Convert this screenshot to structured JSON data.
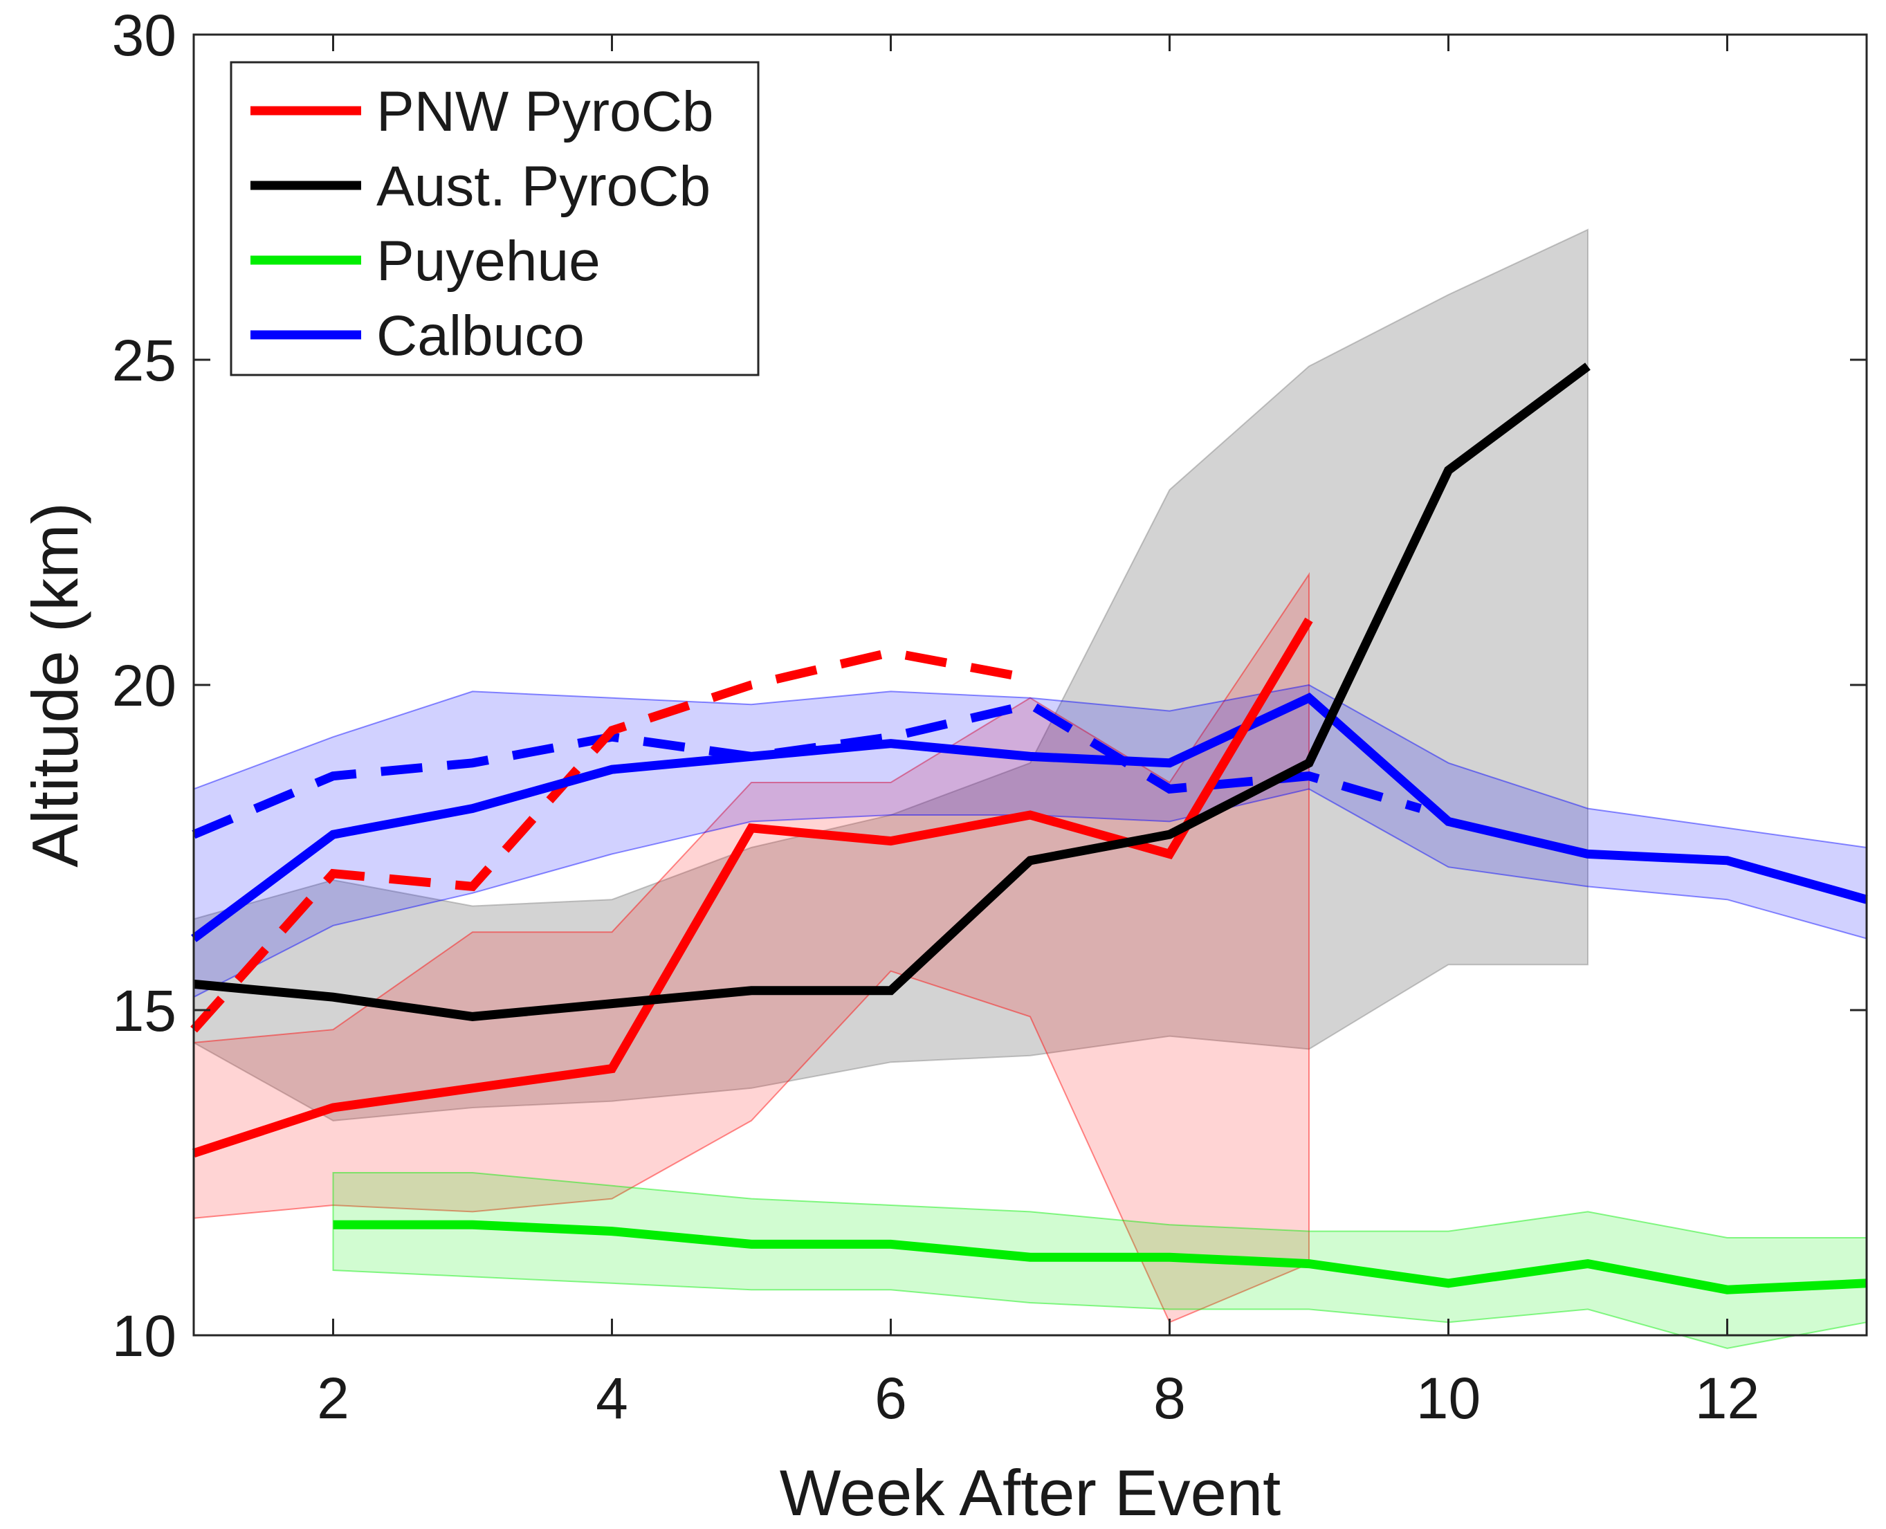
{
  "chart_data": {
    "type": "line",
    "xlabel": "Week After Event",
    "ylabel": "Altitude (km)",
    "xlim": [
      1,
      13
    ],
    "ylim": [
      10,
      30
    ],
    "xticks": [
      2,
      4,
      6,
      8,
      10,
      12
    ],
    "yticks": [
      10,
      15,
      20,
      25,
      30
    ],
    "xtick_labels": [
      "2",
      "4",
      "6",
      "8",
      "10",
      "12"
    ],
    "ytick_labels": [
      "10",
      "15",
      "20",
      "25",
      "30"
    ],
    "grid": false,
    "legend_position": "top-left",
    "legend": [
      {
        "label": "PNW PyroCb",
        "color": "#ff0000"
      },
      {
        "label": "Aust. PyroCb",
        "color": "#000000"
      },
      {
        "label": "Puyehue",
        "color": "#00ee00"
      },
      {
        "label": "Calbuco",
        "color": "#0000ff"
      }
    ],
    "bands": [
      {
        "color": "#808080",
        "opacity": 0.35,
        "x": [
          1,
          2,
          3,
          4,
          5,
          6,
          7,
          8,
          9,
          10,
          11
        ],
        "lower": [
          14.5,
          13.3,
          13.5,
          13.6,
          13.8,
          14.2,
          14.3,
          14.6,
          14.4,
          15.7,
          15.7
        ],
        "upper": [
          16.4,
          17.0,
          16.6,
          16.7,
          17.5,
          18.0,
          18.8,
          23.0,
          24.9,
          26.0,
          27.0
        ]
      },
      {
        "color": "#ff0000",
        "opacity": 0.17,
        "x": [
          1,
          2,
          3,
          4,
          5,
          6,
          7,
          8,
          9
        ],
        "lower": [
          11.8,
          12.0,
          11.9,
          12.1,
          13.3,
          15.6,
          14.9,
          10.2,
          11.1
        ],
        "upper": [
          14.5,
          14.7,
          16.2,
          16.2,
          18.5,
          18.5,
          19.8,
          18.5,
          21.7
        ]
      },
      {
        "color": "#0000ff",
        "opacity": 0.18,
        "x": [
          1,
          2,
          3,
          4,
          5,
          6,
          7,
          8,
          9,
          10,
          11,
          12,
          13
        ],
        "lower": [
          15.2,
          16.3,
          16.8,
          17.4,
          17.9,
          18.0,
          18.0,
          17.9,
          18.4,
          17.2,
          16.9,
          16.7,
          16.1
        ],
        "upper": [
          18.4,
          19.2,
          19.9,
          19.8,
          19.7,
          19.9,
          19.8,
          19.6,
          20.0,
          18.8,
          18.1,
          17.8,
          17.5
        ]
      },
      {
        "color": "#00ee00",
        "opacity": 0.18,
        "x": [
          2,
          3,
          4,
          5,
          6,
          7,
          8,
          9,
          10,
          11,
          12,
          13
        ],
        "lower": [
          11.0,
          10.9,
          10.8,
          10.7,
          10.7,
          10.5,
          10.4,
          10.4,
          10.2,
          10.4,
          9.8,
          10.2
        ],
        "upper": [
          12.5,
          12.5,
          12.3,
          12.1,
          12.0,
          11.9,
          11.7,
          11.6,
          11.6,
          11.9,
          11.5,
          11.5
        ]
      }
    ],
    "series": [
      {
        "name": "Calbuco",
        "color": "#0000ff",
        "style": "dashed",
        "x": [
          1,
          2,
          3,
          4,
          5,
          6,
          7,
          8,
          9,
          9.8
        ],
        "y": [
          17.7,
          18.6,
          18.8,
          19.2,
          18.9,
          19.2,
          19.7,
          18.4,
          18.6,
          18.1
        ]
      },
      {
        "name": "PNW PyroCb",
        "color": "#ff0000",
        "style": "dashed",
        "x": [
          1,
          2,
          3,
          4,
          5,
          6,
          7
        ],
        "y": [
          14.7,
          17.1,
          16.9,
          19.3,
          20.0,
          20.5,
          20.1
        ]
      },
      {
        "name": "Puyehue",
        "color": "#00ee00",
        "style": "solid",
        "x": [
          2,
          3,
          4,
          5,
          6,
          7,
          8,
          9,
          10,
          11,
          12,
          13
        ],
        "y": [
          11.7,
          11.7,
          11.6,
          11.4,
          11.4,
          11.2,
          11.2,
          11.1,
          10.8,
          11.1,
          10.7,
          10.8
        ]
      },
      {
        "name": "Calbuco",
        "color": "#0000ff",
        "style": "solid",
        "x": [
          1,
          2,
          3,
          4,
          5,
          6,
          7,
          8,
          9,
          10,
          11,
          12,
          13
        ],
        "y": [
          16.1,
          17.7,
          18.1,
          18.7,
          18.9,
          19.1,
          18.9,
          18.8,
          19.8,
          17.9,
          17.4,
          17.3,
          16.7
        ]
      },
      {
        "name": "PNW PyroCb",
        "color": "#ff0000",
        "style": "solid",
        "x": [
          1,
          2,
          3,
          4,
          5,
          6,
          7,
          8,
          9
        ],
        "y": [
          12.8,
          13.5,
          13.8,
          14.1,
          17.8,
          17.6,
          18.0,
          17.4,
          21.0
        ]
      },
      {
        "name": "Aust. PyroCb",
        "color": "#000000",
        "style": "solid",
        "x": [
          1,
          2,
          3,
          4,
          5,
          6,
          7,
          8,
          9,
          10,
          11
        ],
        "y": [
          15.4,
          15.2,
          14.9,
          15.1,
          15.3,
          15.3,
          17.3,
          17.7,
          18.8,
          23.3,
          24.9
        ]
      }
    ]
  }
}
